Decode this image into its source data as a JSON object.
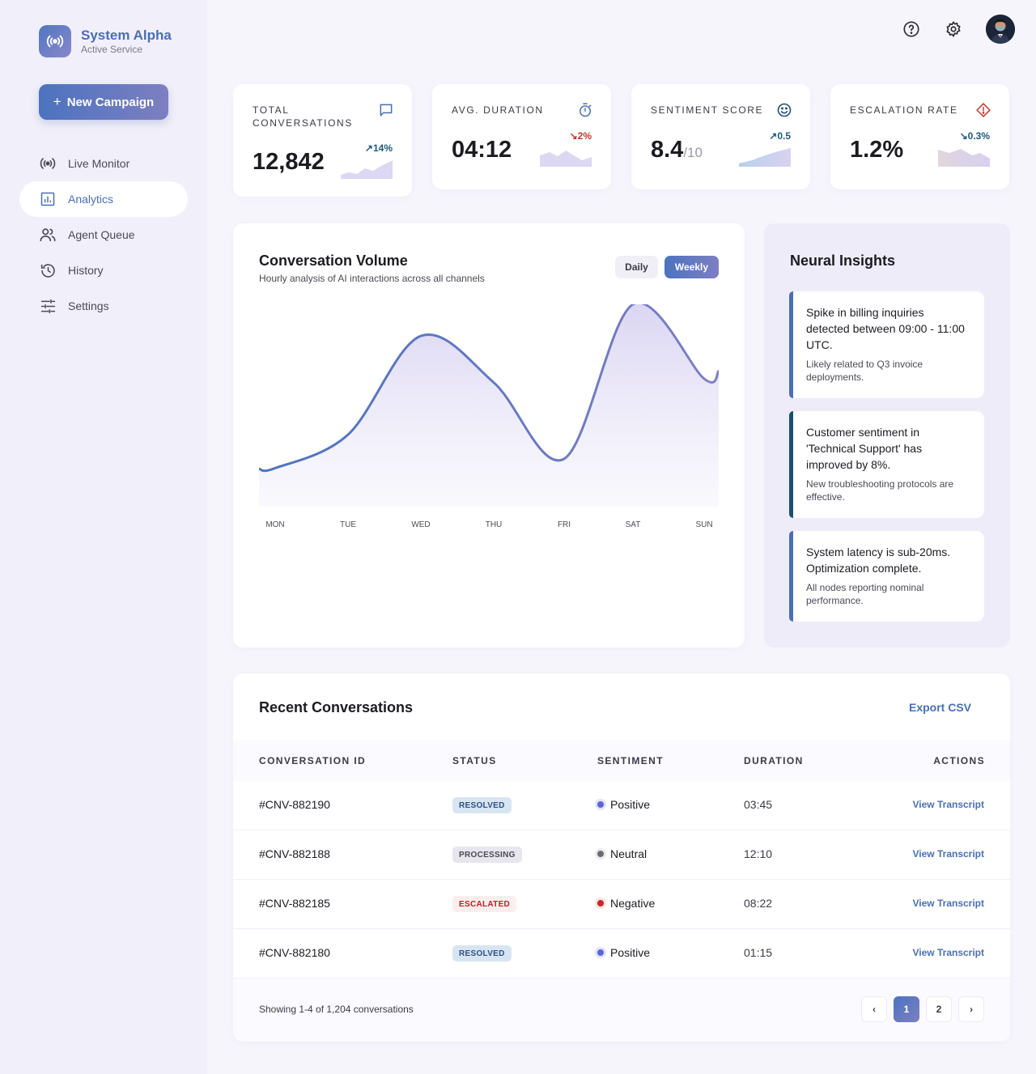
{
  "brand": {
    "name": "System Alpha",
    "subtitle": "Active Service"
  },
  "sidebar": {
    "new_campaign_label": "New Campaign",
    "items": [
      {
        "label": "Live Monitor",
        "icon": "broadcast-icon",
        "active": false
      },
      {
        "label": "Analytics",
        "icon": "analytics-icon",
        "active": true
      },
      {
        "label": "Agent Queue",
        "icon": "users-icon",
        "active": false
      },
      {
        "label": "History",
        "icon": "history-icon",
        "active": false
      },
      {
        "label": "Settings",
        "icon": "sliders-icon",
        "active": false
      }
    ]
  },
  "topbar": {
    "icons": [
      "help-icon",
      "gear-icon",
      "avatar"
    ]
  },
  "stats": [
    {
      "label": "TOTAL CONVERSATIONS",
      "value": "12,842",
      "suffix": "",
      "delta": "14%",
      "trend": "up",
      "icon": "chat-icon"
    },
    {
      "label": "AVG. DURATION",
      "value": "04:12",
      "suffix": "",
      "delta": "2%",
      "trend": "down",
      "icon": "timer-icon"
    },
    {
      "label": "SENTIMENT SCORE",
      "value": "8.4",
      "suffix": "/10",
      "delta": "0.5",
      "trend": "up",
      "icon": "smile-icon"
    },
    {
      "label": "ESCALATION RATE",
      "value": "1.2%",
      "suffix": "",
      "delta": "0.3%",
      "trend": "down",
      "icon": "warning-icon"
    }
  ],
  "colors": {
    "accent": "#4a6fb3",
    "up": "#1e5a7a",
    "down": "#c0392b"
  },
  "volume": {
    "title": "Conversation Volume",
    "subtitle": "Hourly analysis of AI interactions across all channels",
    "toggle_daily": "Daily",
    "toggle_weekly": "Weekly",
    "selected": "Weekly"
  },
  "chart_data": {
    "type": "area",
    "categories": [
      "MON",
      "TUE",
      "WED",
      "THU",
      "FRI",
      "SAT",
      "SUN"
    ],
    "values": [
      0.12,
      0.3,
      0.83,
      0.58,
      0.17,
      1.0,
      0.6
    ],
    "ylim": [
      0,
      1
    ],
    "grid": false,
    "legend": "none"
  },
  "insights": {
    "title": "Neural Insights",
    "items": [
      {
        "main": "Spike in billing inquiries detected between 09:00 - 11:00 UTC.",
        "detail": "Likely related to Q3 invoice deployments.",
        "color": "#4a6fb3"
      },
      {
        "main": "Customer sentiment in 'Technical Support' has improved by 8%.",
        "detail": "New troubleshooting protocols are effective.",
        "color": "#1e4e6e"
      },
      {
        "main": "System latency is sub-20ms. Optimization complete.",
        "detail": "All nodes reporting nominal performance.",
        "color": "#4a6fb3"
      }
    ]
  },
  "table": {
    "title": "Recent Conversations",
    "export_label": "Export CSV",
    "headers": {
      "id": "CONVERSATION ID",
      "status": "STATUS",
      "sentiment": "SENTIMENT",
      "duration": "DURATION",
      "actions": "ACTIONS"
    },
    "rows": [
      {
        "id": "#CNV-882190",
        "status": "RESOLVED",
        "status_kind": "resolved",
        "sentiment": "Positive",
        "sentiment_color": "#5b64d8",
        "duration": "03:45",
        "action": "View Transcript"
      },
      {
        "id": "#CNV-882188",
        "status": "PROCESSING",
        "status_kind": "processing",
        "sentiment": "Neutral",
        "sentiment_color": "#6b6b73",
        "duration": "12:10",
        "action": "View Transcript"
      },
      {
        "id": "#CNV-882185",
        "status": "ESCALATED",
        "status_kind": "escalated",
        "sentiment": "Negative",
        "sentiment_color": "#c62828",
        "duration": "08:22",
        "action": "View Transcript"
      },
      {
        "id": "#CNV-882180",
        "status": "RESOLVED",
        "status_kind": "resolved",
        "sentiment": "Positive",
        "sentiment_color": "#5b64d8",
        "duration": "01:15",
        "action": "View Transcript"
      }
    ],
    "footer_text": "Showing 1-4 of 1,204 conversations",
    "pages": [
      "1",
      "2"
    ],
    "current_page": "1"
  }
}
